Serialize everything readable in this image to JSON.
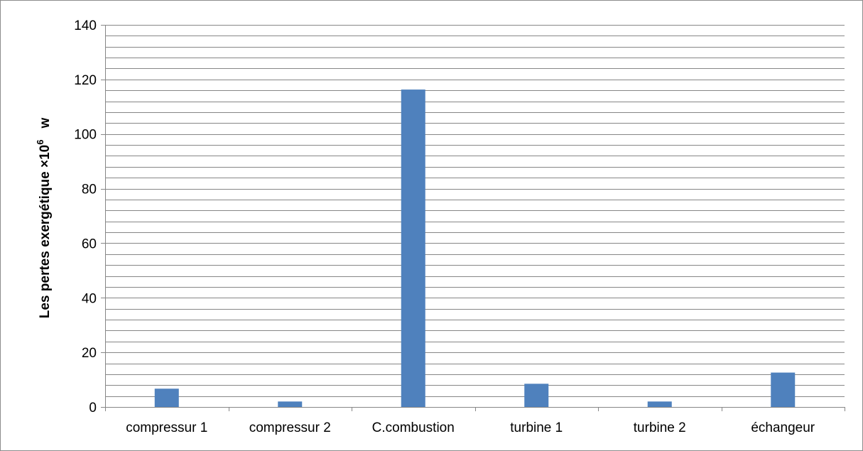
{
  "chart_data": {
    "type": "bar",
    "categories": [
      "compressur 1",
      "compressur 2",
      "C.combustion",
      "turbine 1",
      "turbine 2",
      "échangeur"
    ],
    "values": [
      6.7,
      2.0,
      116.3,
      8.5,
      2.0,
      12.6
    ],
    "ylabel": {
      "main": "Les pertes exergétique ×10",
      "sup": "6",
      "unit": "w"
    },
    "ylim": [
      0,
      140
    ],
    "yticks": [
      "0",
      "20",
      "40",
      "60",
      "80",
      "100",
      "120",
      "140"
    ],
    "major_step": 20,
    "minor_step": 4,
    "grid": true,
    "bar_color": "#4f81bd",
    "grid_color": "#868686"
  }
}
